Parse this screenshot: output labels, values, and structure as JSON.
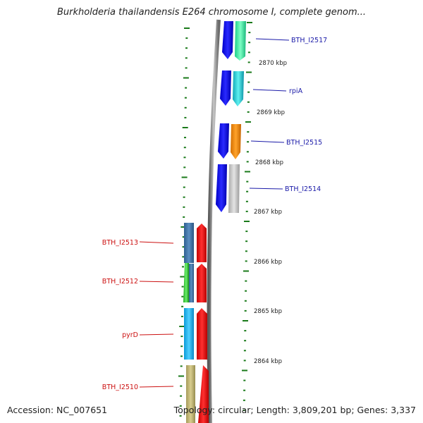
{
  "title": "Burkholderia thailandensis E264 chromosome I, complete genom...",
  "footer": {
    "accession": "Accession: NC_007651",
    "summary": "Topology: circular; Length: 3,809,201 bp; Genes: 3,337"
  },
  "positions": {
    "kbp_2870": "2870 kbp",
    "kbp_2869": "2869 kbp",
    "kbp_2868": "2868 kbp",
    "kbp_2867": "2867 kbp",
    "kbp_2866": "2866 kbp",
    "kbp_2865": "2865 kbp",
    "kbp_2864": "2864 kbp"
  },
  "genes": {
    "bth_i2517": "BTH_I2517",
    "rpia": "rpiA",
    "bth_i2515": "BTH_I2515",
    "bth_i2514": "BTH_I2514",
    "bth_i2513": "BTH_I2513",
    "bth_i2512": "BTH_I2512",
    "pyrd": "pyrD",
    "bth_i2510": "BTH_I2510"
  },
  "colors": {
    "strand_forward": "#1010ee",
    "strand_reverse": "#ee1010",
    "label_forward": "#1a1aa8",
    "label_reverse": "#cc1111",
    "tick": "#1a7a1a",
    "backbone": "#8a8a8a"
  }
}
